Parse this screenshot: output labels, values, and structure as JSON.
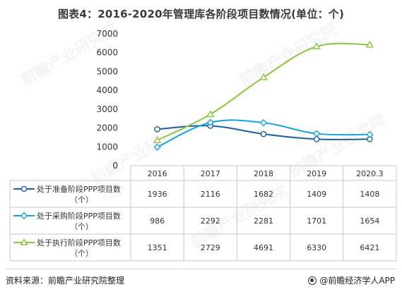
{
  "page": {
    "title": "图表4：2016-2020年管理库各阶段项目数情况(单位：个)",
    "source": "资料来源：前瞻产业研究院整理",
    "brand": "@前瞻经济学人APP",
    "watermark": "前瞻产业研究院"
  },
  "chart_data": {
    "type": "line",
    "title": "图表4：2016-2020年管理库各阶段项目数情况(单位：个)",
    "categories": [
      "2016",
      "2017",
      "2018",
      "2019",
      "2020.3"
    ],
    "ylim": [
      0,
      7000
    ],
    "yticks": [
      0,
      1000,
      2000,
      3000,
      4000,
      5000,
      6000,
      7000
    ],
    "grid": false,
    "legend_placement": "data-table-left",
    "series": [
      {
        "name": "处于准备阶段PPP项目数（个）",
        "color": "#1f5f9f",
        "marker": "circle",
        "values": [
          1936,
          2116,
          1682,
          1409,
          1408
        ]
      },
      {
        "name": "处于采购阶段PPP项目数（个）",
        "color": "#1aa3d9",
        "marker": "diamond",
        "values": [
          986,
          2292,
          2281,
          1701,
          1654
        ]
      },
      {
        "name": "处于执行阶段PPP项目数（个）",
        "color": "#8cc63f",
        "marker": "triangle",
        "values": [
          1351,
          2729,
          4691,
          6330,
          6421
        ]
      }
    ]
  }
}
